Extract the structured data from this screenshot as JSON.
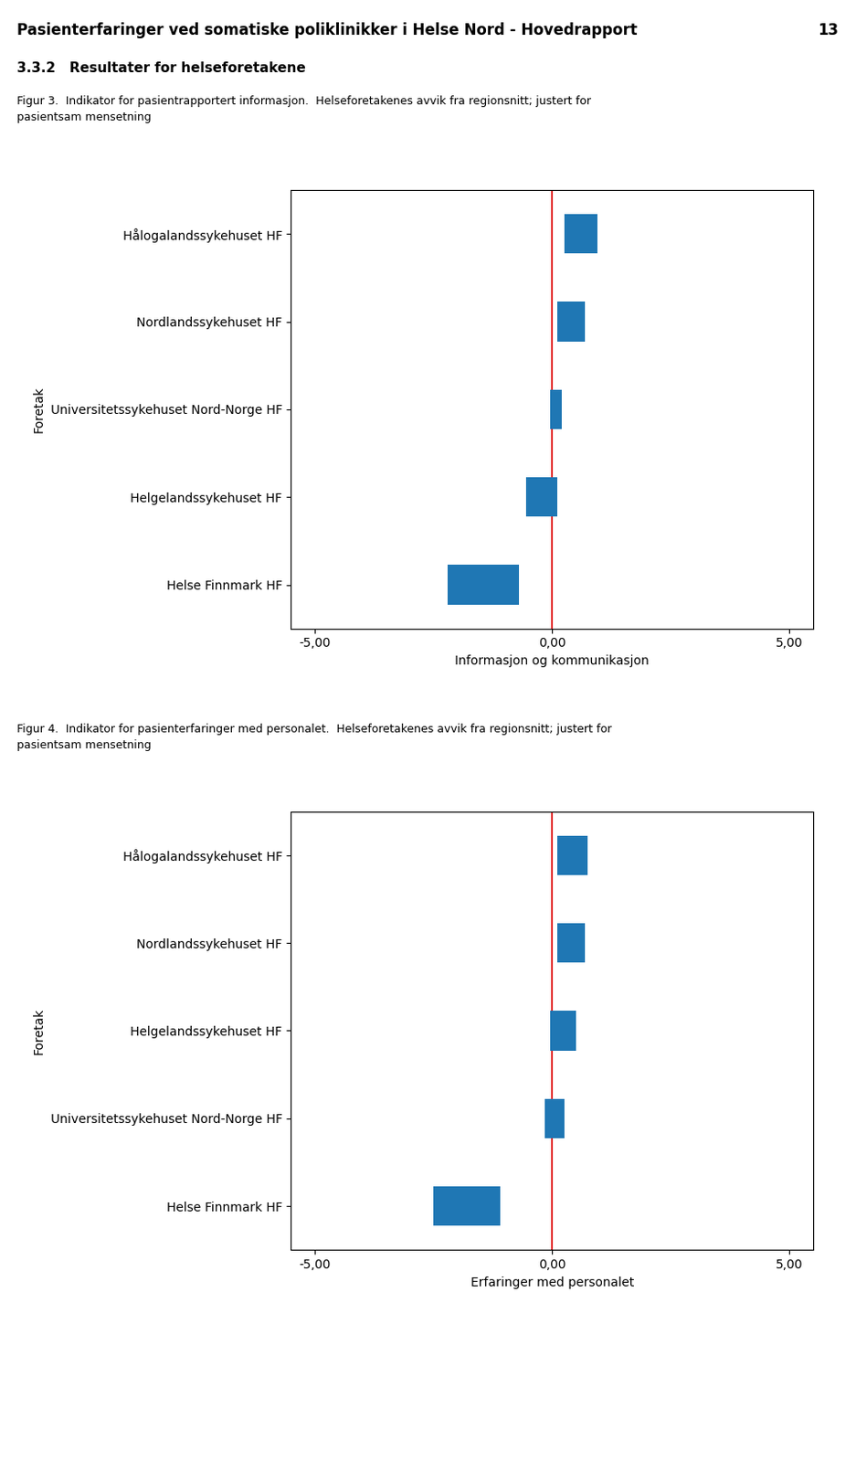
{
  "page_title": "Pasienterfaringer ved somatiske poliklinikker i Helse Nord - Hovedrapport",
  "page_number": "13",
  "section_title": "3.3.2   Resultater for helseforetakene",
  "chart_data": [
    {
      "type": "bar",
      "orientation": "horizontal",
      "title": "Figur 3.  Indikator for pasientrapportert informasjon.  Helseforetakenes avvik fra regionsnitt; justert for\npasientsam mensetning",
      "xlabel": "Informasjon og kommunikasjon",
      "ylabel": "Foretak",
      "categories": [
        "Hålogalandssykehuset HF",
        "Nordlandssykehuset HF",
        "Universitetssykehuset Nord-Norge HF",
        "Helgelandssykehuset HF",
        "Helse Finnmark HF"
      ],
      "ci_low": [
        0.25,
        0.1,
        -0.05,
        -0.55,
        -2.2
      ],
      "ci_high": [
        0.95,
        0.7,
        0.2,
        0.1,
        -0.7
      ],
      "xlim": [
        -5.5,
        5.5
      ],
      "xticks": [
        {
          "value": -5.0,
          "label": "-5,00"
        },
        {
          "value": 0.0,
          "label": "0,00"
        },
        {
          "value": 5.0,
          "label": "5,00"
        }
      ],
      "reference_lines": [
        {
          "x": 0.0,
          "color": "#DD0000"
        }
      ],
      "grid": false
    },
    {
      "type": "bar",
      "orientation": "horizontal",
      "title": "Figur 4.  Indikator for pasienterfaringer med personalet.  Helseforetakenes avvik fra regionsnitt; justert for\npasientsam mensetning",
      "xlabel": "Erfaringer med personalet",
      "ylabel": "Foretak",
      "categories": [
        "Hålogalandssykehuset HF",
        "Nordlandssykehuset HF",
        "Helgelandssykehuset HF",
        "Universitetssykehuset Nord-Norge HF",
        "Helse Finnmark HF"
      ],
      "ci_low": [
        0.1,
        0.1,
        -0.05,
        -0.15,
        -2.5
      ],
      "ci_high": [
        0.75,
        0.7,
        0.5,
        0.25,
        -1.1
      ],
      "xlim": [
        -5.5,
        5.5
      ],
      "xticks": [
        {
          "value": -5.0,
          "label": "-5,00"
        },
        {
          "value": 0.0,
          "label": "0,00"
        },
        {
          "value": 5.0,
          "label": "5,00"
        }
      ],
      "reference_lines": [
        {
          "x": 0.0,
          "color": "#DD0000"
        }
      ],
      "grid": false
    }
  ]
}
